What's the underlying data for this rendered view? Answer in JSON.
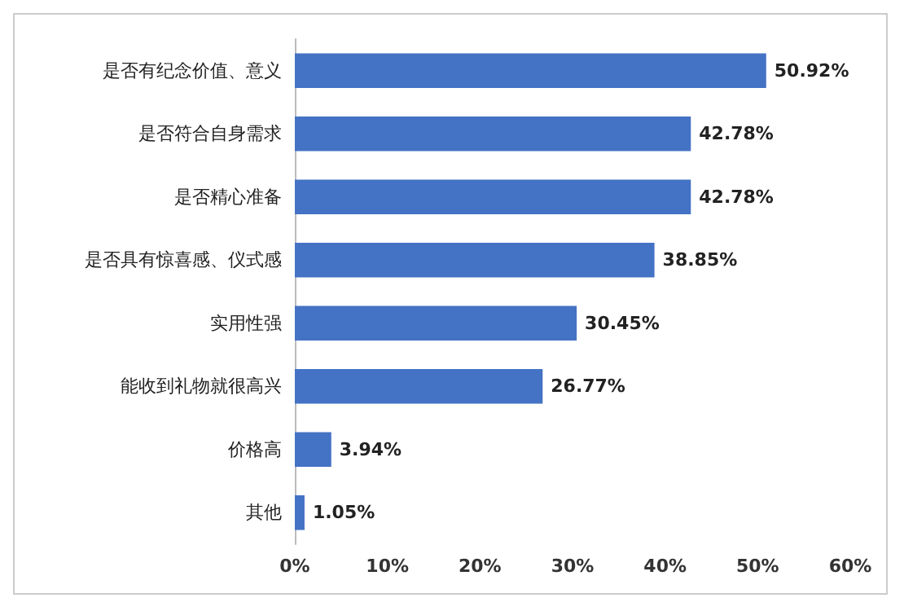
{
  "chart_data": {
    "type": "bar",
    "orientation": "horizontal",
    "categories": [
      "是否有纪念价值、意义",
      "是否符合自身需求",
      "是否精心准备",
      "是否具有惊喜感、仪式感",
      "实用性强",
      "能收到礼物就很高兴",
      "价格高",
      "其他"
    ],
    "values": [
      50.92,
      42.78,
      42.78,
      38.85,
      30.45,
      26.77,
      3.94,
      1.05
    ],
    "value_labels": [
      "50.92%",
      "42.78%",
      "42.78%",
      "38.85%",
      "30.45%",
      "26.77%",
      "3.94%",
      "1.05%"
    ],
    "color": "#4472c4",
    "xlim": [
      0,
      60
    ],
    "xticks": [
      {
        "value": 0,
        "label": "0%"
      },
      {
        "value": 10,
        "label": "10%"
      },
      {
        "value": 20,
        "label": "20%"
      },
      {
        "value": 30,
        "label": "30%"
      },
      {
        "value": 40,
        "label": "40%"
      },
      {
        "value": 50,
        "label": "50%"
      },
      {
        "value": 60,
        "label": "60%"
      }
    ],
    "grid": false
  }
}
